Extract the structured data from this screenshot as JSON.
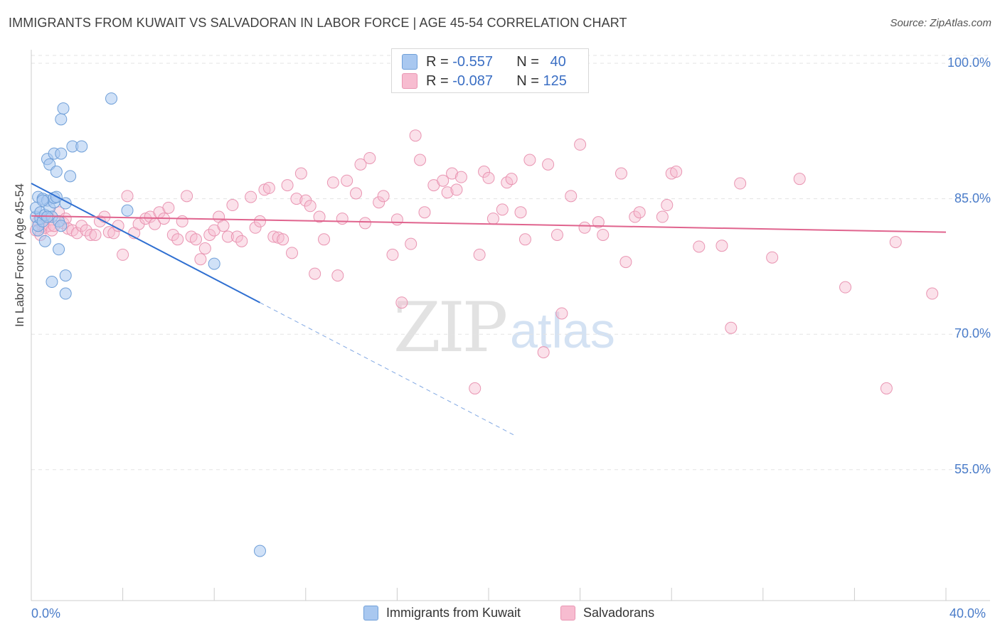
{
  "header": {
    "title": "IMMIGRANTS FROM KUWAIT VS SALVADORAN IN LABOR FORCE | AGE 45-54 CORRELATION CHART",
    "source": "Source: ZipAtlas.com"
  },
  "watermark": {
    "zip": "ZIP",
    "atlas": "atlas"
  },
  "legend": {
    "rows": [
      {
        "r_label": "R = ",
        "r_value": "-0.557",
        "n_label": "N = ",
        "n_value": "40",
        "color": "#a9c8f0",
        "border": "#6f9fd8"
      },
      {
        "r_label": "R = ",
        "r_value": "-0.087",
        "n_label": "N = ",
        "n_value": "125",
        "color": "#f7bcd0",
        "border": "#e995b2"
      }
    ]
  },
  "bottom_legend": [
    {
      "label": "Immigrants from Kuwait",
      "color": "#a9c8f0",
      "border": "#6f9fd8"
    },
    {
      "label": "Salvadorans",
      "color": "#f7bcd0",
      "border": "#e995b2"
    }
  ],
  "chart_data": {
    "type": "scatter",
    "title": "IMMIGRANTS FROM KUWAIT VS SALVADORAN IN LABOR FORCE | AGE 45-54 CORRELATION CHART",
    "ylabel": "In Labor Force | Age 45-54",
    "xlabel": "",
    "x_tick_labels": [
      "0.0%",
      "40.0%"
    ],
    "y_tick_labels": [
      "100.0%",
      "85.0%",
      "70.0%",
      "55.0%"
    ],
    "y_ticks": [
      100,
      85,
      70,
      55
    ],
    "xlim": [
      0,
      40
    ],
    "ylim": [
      40.5,
      101.5
    ],
    "grid": "horizontal dashed",
    "series": [
      {
        "name": "Immigrants from Kuwait",
        "color": "#6f9fd8",
        "fill": "rgba(169,200,240,0.55)",
        "trend": {
          "x0": 0,
          "y0": 86.7,
          "x1": 10,
          "y1": 73.5,
          "dashed_to_x": 21.2,
          "color": "#2f6fd1"
        },
        "points": [
          [
            0.2,
            83.0
          ],
          [
            0.2,
            84.0
          ],
          [
            0.3,
            85.2
          ],
          [
            0.3,
            81.5
          ],
          [
            0.3,
            82.0
          ],
          [
            0.4,
            82.8
          ],
          [
            0.4,
            83.5
          ],
          [
            0.5,
            82.5
          ],
          [
            0.5,
            85.0
          ],
          [
            0.6,
            83.2
          ],
          [
            0.6,
            80.3
          ],
          [
            0.7,
            84.8
          ],
          [
            0.7,
            89.4
          ],
          [
            0.8,
            88.8
          ],
          [
            0.8,
            84.0
          ],
          [
            0.9,
            75.8
          ],
          [
            0.9,
            83.0
          ],
          [
            1.0,
            84.6
          ],
          [
            1.0,
            85.1
          ],
          [
            1.0,
            90.0
          ],
          [
            1.1,
            85.2
          ],
          [
            1.1,
            88.0
          ],
          [
            1.2,
            79.4
          ],
          [
            1.2,
            82.5
          ],
          [
            1.3,
            93.8
          ],
          [
            1.3,
            82.0
          ],
          [
            1.3,
            90.0
          ],
          [
            1.4,
            95.0
          ],
          [
            1.5,
            84.5
          ],
          [
            1.5,
            76.5
          ],
          [
            1.5,
            74.5
          ],
          [
            1.7,
            87.5
          ],
          [
            1.8,
            90.8
          ],
          [
            2.2,
            90.8
          ],
          [
            3.5,
            96.1
          ],
          [
            4.2,
            83.7
          ],
          [
            8.0,
            77.8
          ],
          [
            10.0,
            46.0
          ],
          [
            0.5,
            84.8
          ],
          [
            0.7,
            83.0
          ]
        ]
      },
      {
        "name": "Salvadorans",
        "color": "#e995b2",
        "fill": "rgba(247,188,208,0.45)",
        "trend": {
          "x0": 0,
          "y0": 83.1,
          "x1": 40,
          "y1": 81.3,
          "color": "#e0648e"
        },
        "points": [
          [
            0.2,
            81.5
          ],
          [
            0.3,
            82.5
          ],
          [
            0.4,
            81.0
          ],
          [
            0.5,
            82.0
          ],
          [
            0.6,
            81.8
          ],
          [
            0.7,
            83.0
          ],
          [
            0.8,
            82.0
          ],
          [
            0.9,
            81.5
          ],
          [
            1.0,
            82.0
          ],
          [
            1.2,
            83.5
          ],
          [
            1.4,
            82.3
          ],
          [
            1.5,
            82.8
          ],
          [
            1.6,
            81.7
          ],
          [
            1.8,
            81.5
          ],
          [
            2.0,
            81.2
          ],
          [
            2.2,
            82.0
          ],
          [
            2.4,
            81.5
          ],
          [
            2.6,
            81.0
          ],
          [
            2.8,
            81.0
          ],
          [
            3.0,
            82.5
          ],
          [
            3.2,
            83.0
          ],
          [
            3.4,
            81.3
          ],
          [
            3.6,
            81.2
          ],
          [
            3.8,
            82.0
          ],
          [
            4.0,
            78.8
          ],
          [
            4.2,
            85.3
          ],
          [
            4.5,
            81.2
          ],
          [
            4.7,
            82.2
          ],
          [
            5.0,
            82.8
          ],
          [
            5.2,
            83.0
          ],
          [
            5.4,
            82.2
          ],
          [
            5.6,
            83.5
          ],
          [
            5.8,
            82.8
          ],
          [
            6.0,
            84.0
          ],
          [
            6.2,
            81.0
          ],
          [
            6.4,
            80.5
          ],
          [
            6.6,
            82.5
          ],
          [
            6.8,
            85.3
          ],
          [
            7.0,
            80.8
          ],
          [
            7.2,
            80.5
          ],
          [
            7.4,
            78.3
          ],
          [
            7.6,
            79.5
          ],
          [
            7.8,
            81.0
          ],
          [
            8.0,
            81.5
          ],
          [
            8.2,
            83.0
          ],
          [
            8.4,
            82.0
          ],
          [
            8.6,
            80.8
          ],
          [
            8.8,
            84.3
          ],
          [
            9.0,
            80.8
          ],
          [
            9.2,
            80.3
          ],
          [
            9.6,
            85.2
          ],
          [
            9.8,
            81.8
          ],
          [
            10.0,
            82.5
          ],
          [
            10.2,
            86.0
          ],
          [
            10.4,
            86.2
          ],
          [
            10.6,
            80.8
          ],
          [
            10.8,
            80.7
          ],
          [
            11.0,
            80.5
          ],
          [
            11.2,
            86.5
          ],
          [
            11.4,
            79.0
          ],
          [
            11.6,
            85.0
          ],
          [
            11.8,
            87.8
          ],
          [
            12.0,
            84.8
          ],
          [
            12.2,
            84.2
          ],
          [
            12.4,
            76.7
          ],
          [
            12.6,
            83.0
          ],
          [
            12.8,
            80.5
          ],
          [
            13.2,
            86.8
          ],
          [
            13.4,
            76.5
          ],
          [
            13.6,
            82.8
          ],
          [
            13.8,
            87.0
          ],
          [
            14.2,
            85.6
          ],
          [
            14.4,
            88.8
          ],
          [
            14.6,
            82.3
          ],
          [
            14.8,
            89.5
          ],
          [
            15.2,
            84.6
          ],
          [
            15.4,
            85.3
          ],
          [
            15.8,
            78.8
          ],
          [
            16.0,
            82.7
          ],
          [
            16.2,
            73.5
          ],
          [
            16.6,
            80.0
          ],
          [
            16.8,
            92.0
          ],
          [
            17.0,
            89.3
          ],
          [
            17.2,
            83.5
          ],
          [
            17.6,
            86.5
          ],
          [
            18.0,
            87.0
          ],
          [
            18.2,
            85.7
          ],
          [
            18.4,
            87.8
          ],
          [
            18.6,
            86.0
          ],
          [
            18.8,
            87.4
          ],
          [
            19.4,
            64.0
          ],
          [
            19.6,
            78.8
          ],
          [
            19.8,
            88.0
          ],
          [
            20.0,
            87.3
          ],
          [
            20.2,
            82.8
          ],
          [
            20.6,
            83.8
          ],
          [
            20.8,
            86.8
          ],
          [
            21.0,
            87.2
          ],
          [
            21.4,
            83.5
          ],
          [
            21.6,
            80.5
          ],
          [
            21.8,
            89.3
          ],
          [
            22.4,
            68.0
          ],
          [
            22.6,
            88.8
          ],
          [
            23.0,
            81.0
          ],
          [
            23.2,
            72.3
          ],
          [
            23.6,
            85.3
          ],
          [
            24.0,
            91.0
          ],
          [
            24.2,
            81.8
          ],
          [
            24.8,
            82.4
          ],
          [
            25.0,
            81.0
          ],
          [
            25.8,
            87.8
          ],
          [
            26.0,
            78.0
          ],
          [
            26.4,
            83.0
          ],
          [
            26.6,
            83.5
          ],
          [
            27.6,
            83.0
          ],
          [
            27.8,
            84.3
          ],
          [
            28.0,
            87.8
          ],
          [
            28.2,
            88.0
          ],
          [
            29.2,
            79.7
          ],
          [
            30.2,
            79.8
          ],
          [
            30.6,
            70.7
          ],
          [
            31.0,
            86.7
          ],
          [
            32.4,
            78.5
          ],
          [
            33.6,
            87.2
          ],
          [
            35.6,
            75.2
          ],
          [
            37.4,
            64.0
          ],
          [
            37.8,
            80.2
          ],
          [
            39.4,
            74.5
          ]
        ]
      }
    ]
  }
}
